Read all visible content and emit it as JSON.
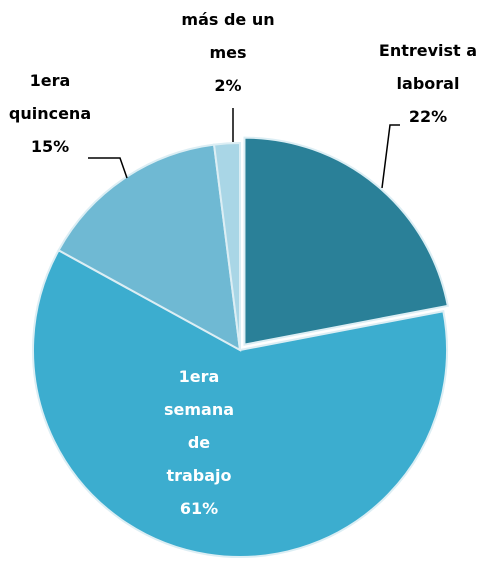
{
  "chart_data": {
    "type": "pie",
    "categories": [
      "Entrevist a laboral",
      "1era semana de trabajo",
      "1era quincena",
      "más de un mes"
    ],
    "values": [
      22,
      61,
      15,
      2
    ],
    "value_labels": [
      "22%",
      "61%",
      "15%",
      "2%"
    ],
    "colors": [
      "#2a8098",
      "#3cadcf",
      "#6fb9d3",
      "#a9d6e6"
    ]
  }
}
